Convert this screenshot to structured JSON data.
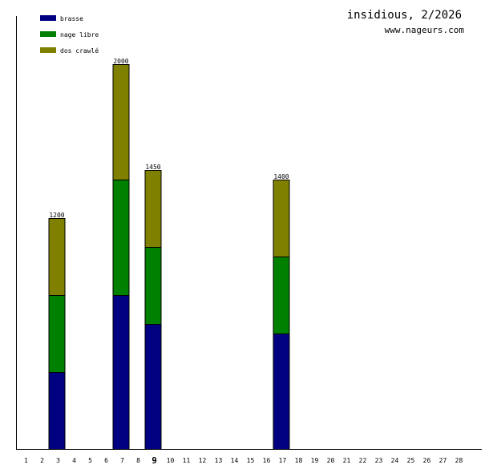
{
  "header": {
    "title": "insidious, 2/2026",
    "site": "www.nageurs.com"
  },
  "chart_data": {
    "type": "bar",
    "stacked": true,
    "categories": [
      "1",
      "2",
      "3",
      "4",
      "5",
      "6",
      "7",
      "8",
      "9",
      "10",
      "11",
      "12",
      "13",
      "14",
      "15",
      "16",
      "17",
      "18",
      "19",
      "20",
      "21",
      "22",
      "23",
      "24",
      "25",
      "26",
      "27",
      "28"
    ],
    "highlighted_category": "9",
    "series": [
      {
        "name": "brasse",
        "color": "#000080",
        "values": [
          0,
          0,
          400,
          0,
          0,
          0,
          800,
          0,
          650,
          0,
          0,
          0,
          0,
          0,
          0,
          0,
          600,
          0,
          0,
          0,
          0,
          0,
          0,
          0,
          0,
          0,
          0,
          0
        ]
      },
      {
        "name": "nage libre",
        "color": "#008000",
        "values": [
          0,
          0,
          400,
          0,
          0,
          0,
          600,
          0,
          400,
          0,
          0,
          0,
          0,
          0,
          0,
          0,
          400,
          0,
          0,
          0,
          0,
          0,
          0,
          0,
          0,
          0,
          0,
          0
        ]
      },
      {
        "name": "dos crawlé",
        "color": "#808000",
        "values": [
          0,
          0,
          400,
          0,
          0,
          0,
          600,
          0,
          400,
          0,
          0,
          0,
          0,
          0,
          0,
          0,
          400,
          0,
          0,
          0,
          0,
          0,
          0,
          0,
          0,
          0,
          0,
          0
        ]
      }
    ],
    "totals": [
      0,
      0,
      1200,
      0,
      0,
      0,
      2000,
      0,
      1450,
      0,
      0,
      0,
      0,
      0,
      0,
      0,
      1400,
      0,
      0,
      0,
      0,
      0,
      0,
      0,
      0,
      0,
      0,
      0
    ],
    "ylim": [
      0,
      2300
    ],
    "legend": "top-left",
    "grid": false
  }
}
